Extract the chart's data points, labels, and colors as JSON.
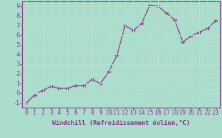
{
  "x": [
    0,
    1,
    2,
    3,
    4,
    5,
    6,
    7,
    8,
    9,
    10,
    11,
    12,
    13,
    14,
    15,
    16,
    17,
    18,
    19,
    20,
    21,
    22,
    23
  ],
  "y": [
    -1.0,
    -0.2,
    0.3,
    0.7,
    0.5,
    0.5,
    0.8,
    0.8,
    1.4,
    1.0,
    2.2,
    3.9,
    7.0,
    6.5,
    7.2,
    9.1,
    9.0,
    8.3,
    7.6,
    5.3,
    5.9,
    6.3,
    6.7,
    7.5
  ],
  "line_color": "#883388",
  "marker": "D",
  "marker_size": 2.5,
  "background_color": "#aaddcc",
  "grid_color": "#bbddcc",
  "xlabel": "Windchill (Refroidissement éolien,°C)",
  "xlim": [
    -0.5,
    23.5
  ],
  "ylim": [
    -1.5,
    9.5
  ],
  "yticks": [
    -1,
    0,
    1,
    2,
    3,
    4,
    5,
    6,
    7,
    8,
    9
  ],
  "xticks": [
    0,
    1,
    2,
    3,
    4,
    5,
    6,
    7,
    8,
    9,
    10,
    11,
    12,
    13,
    14,
    15,
    16,
    17,
    18,
    19,
    20,
    21,
    22,
    23
  ],
  "xlabel_fontsize": 6.5,
  "tick_fontsize": 6.0,
  "label_color": "#883388",
  "spine_color": "#883388",
  "grid_alpha": 0.5
}
